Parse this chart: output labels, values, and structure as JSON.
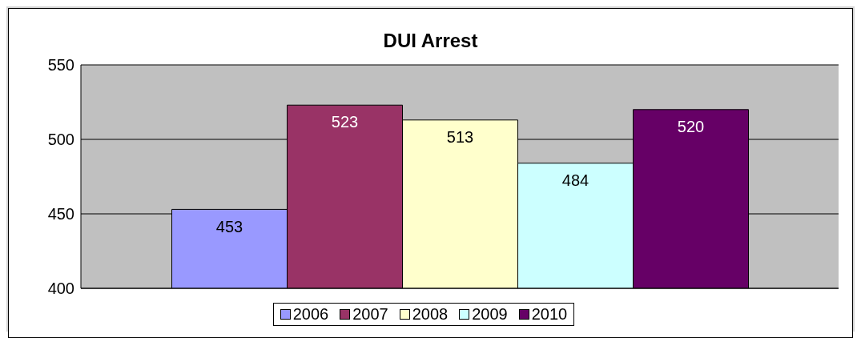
{
  "chart_data": {
    "type": "bar",
    "title": "DUI Arrest",
    "categories": [
      null
    ],
    "series": [
      {
        "name": "2006",
        "color": "#9999ff",
        "values": [
          453
        ]
      },
      {
        "name": "2007",
        "color": "#993366",
        "values": [
          523
        ]
      },
      {
        "name": "2008",
        "color": "#ffffcc",
        "values": [
          513
        ]
      },
      {
        "name": "2009",
        "color": "#ccffff",
        "values": [
          484
        ]
      },
      {
        "name": "2010",
        "color": "#660066",
        "values": [
          520
        ]
      }
    ],
    "ylim": [
      400,
      550
    ],
    "yticks": [
      400,
      450,
      500,
      550
    ],
    "grid": "y",
    "legend": "bottom",
    "data_labels": true
  }
}
